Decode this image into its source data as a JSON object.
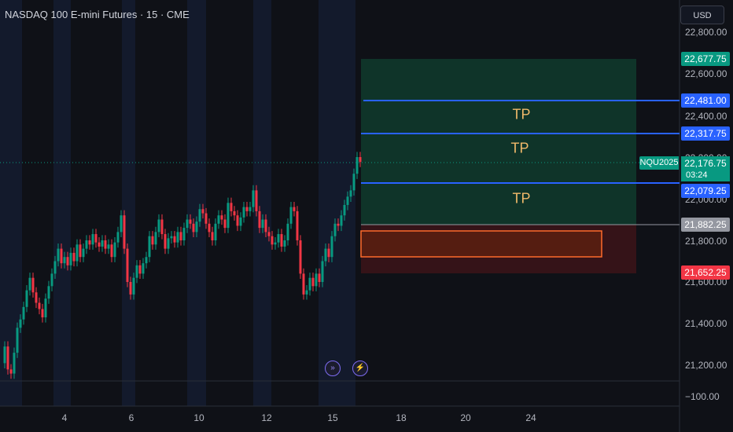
{
  "header": {
    "title": "NASDAQ 100 E-mini Futures · 15 · CME",
    "currency": "USD"
  },
  "y_axis_ticks": [
    "22,800.00",
    "22,600.00",
    "22,400.00",
    "22,200.00",
    "22,000.00",
    "21,800.00",
    "21,600.00",
    "21,400.00",
    "21,200.00"
  ],
  "indicator_tick": "−100.00",
  "x_axis_ticks": [
    "4",
    "6",
    "10",
    "12",
    "15",
    "18",
    "20",
    "24"
  ],
  "price_tags": {
    "upper": "22,677.75",
    "tp1": "22,481.00",
    "tp2": "22,317.75",
    "current": "22,176.75",
    "tp3": "22,079.25",
    "entry": "21,882.25",
    "stop": "21,652.25"
  },
  "symbol_tag": "NQU2025",
  "countdown": "03:24",
  "tp_labels": [
    "TP",
    "TP",
    "TP"
  ],
  "event_icons": [
    "fast-forward-icon",
    "lightning-icon"
  ],
  "colors": {
    "background": "#0f1117",
    "session_band": "#131a2c",
    "candle_up": "#089981",
    "candle_down": "#f23645",
    "tp_line": "#2962ff",
    "target_zone": "#0f3b2d",
    "stop_zone": "#3a1418",
    "entry_box": "#ff6b2b"
  },
  "chart_data": {
    "type": "candlestick",
    "title": "NASDAQ 100 E-mini Futures · 15 · CME",
    "x_ticks": [
      "4",
      "6",
      "10",
      "12",
      "15",
      "18",
      "20",
      "24"
    ],
    "ylim": [
      21150,
      22850
    ],
    "y_ticks": [
      22800,
      22600,
      22400,
      22200,
      22000,
      21800,
      21600,
      21400,
      21200
    ],
    "price_path": [
      [
        2,
        21210
      ],
      [
        6,
        21290
      ],
      [
        10,
        21180
      ],
      [
        14,
        21160
      ],
      [
        18,
        21260
      ],
      [
        22,
        21380
      ],
      [
        26,
        21420
      ],
      [
        30,
        21480
      ],
      [
        34,
        21560
      ],
      [
        38,
        21620
      ],
      [
        42,
        21550
      ],
      [
        46,
        21500
      ],
      [
        50,
        21470
      ],
      [
        54,
        21430
      ],
      [
        58,
        21520
      ],
      [
        62,
        21580
      ],
      [
        66,
        21640
      ],
      [
        70,
        21700
      ],
      [
        74,
        21760
      ],
      [
        78,
        21690
      ],
      [
        82,
        21720
      ],
      [
        86,
        21680
      ],
      [
        90,
        21740
      ],
      [
        94,
        21700
      ],
      [
        98,
        21780
      ],
      [
        102,
        21720
      ],
      [
        106,
        21760
      ],
      [
        110,
        21800
      ],
      [
        114,
        21780
      ],
      [
        118,
        21830
      ],
      [
        122,
        21790
      ],
      [
        126,
        21770
      ],
      [
        130,
        21800
      ],
      [
        134,
        21760
      ],
      [
        138,
        21780
      ],
      [
        142,
        21720
      ],
      [
        146,
        21790
      ],
      [
        150,
        21840
      ],
      [
        154,
        21920
      ],
      [
        158,
        21760
      ],
      [
        162,
        21600
      ],
      [
        166,
        21540
      ],
      [
        170,
        21620
      ],
      [
        174,
        21680
      ],
      [
        178,
        21640
      ],
      [
        182,
        21690
      ],
      [
        186,
        21720
      ],
      [
        190,
        21820
      ],
      [
        194,
        21780
      ],
      [
        198,
        21840
      ],
      [
        202,
        21900
      ],
      [
        206,
        21830
      ],
      [
        210,
        21760
      ],
      [
        214,
        21810
      ],
      [
        218,
        21820
      ],
      [
        222,
        21790
      ],
      [
        226,
        21840
      ],
      [
        230,
        21800
      ],
      [
        234,
        21860
      ],
      [
        238,
        21900
      ],
      [
        242,
        21880
      ],
      [
        246,
        21840
      ],
      [
        250,
        21890
      ],
      [
        254,
        21950
      ],
      [
        258,
        21930
      ],
      [
        262,
        21880
      ],
      [
        266,
        21840
      ],
      [
        270,
        21800
      ],
      [
        274,
        21880
      ],
      [
        278,
        21920
      ],
      [
        282,
        21900
      ],
      [
        286,
        21860
      ],
      [
        290,
        21980
      ],
      [
        294,
        21940
      ],
      [
        298,
        21920
      ],
      [
        302,
        21870
      ],
      [
        306,
        21910
      ],
      [
        310,
        21960
      ],
      [
        314,
        21940
      ],
      [
        318,
        21960
      ],
      [
        322,
        22040
      ],
      [
        326,
        21940
      ],
      [
        330,
        21860
      ],
      [
        334,
        21900
      ],
      [
        338,
        21840
      ],
      [
        342,
        21820
      ],
      [
        346,
        21780
      ],
      [
        350,
        21790
      ],
      [
        354,
        21830
      ],
      [
        358,
        21770
      ],
      [
        362,
        21800
      ],
      [
        366,
        21880
      ],
      [
        370,
        21960
      ],
      [
        374,
        21940
      ],
      [
        378,
        21800
      ],
      [
        382,
        21640
      ],
      [
        386,
        21540
      ],
      [
        390,
        21560
      ],
      [
        394,
        21620
      ],
      [
        398,
        21580
      ],
      [
        402,
        21640
      ],
      [
        406,
        21600
      ],
      [
        410,
        21700
      ],
      [
        414,
        21760
      ],
      [
        418,
        21720
      ],
      [
        422,
        21820
      ],
      [
        426,
        21880
      ],
      [
        430,
        21870
      ],
      [
        434,
        21920
      ],
      [
        438,
        21970
      ],
      [
        442,
        22010
      ],
      [
        446,
        22040
      ],
      [
        450,
        22120
      ],
      [
        454,
        22200
      ],
      [
        458,
        22176.75
      ]
    ],
    "levels": [
      {
        "label": "22,677.75",
        "value": 22677.75
      },
      {
        "label": "TP",
        "value": 22481.0
      },
      {
        "label": "TP",
        "value": 22317.75
      },
      {
        "label": "NQU2025",
        "value": 22176.75
      },
      {
        "label": "TP",
        "value": 22079.25
      },
      {
        "label": "21,882.25",
        "value": 21882.25
      },
      {
        "label": "21,652.25",
        "value": 21652.25
      }
    ],
    "grid": false,
    "legend": "none"
  }
}
